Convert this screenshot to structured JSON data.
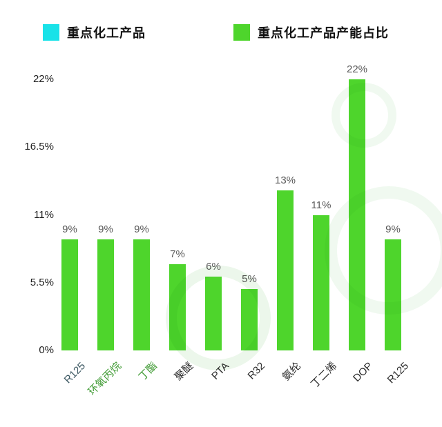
{
  "legend": {
    "items": [
      {
        "label": "重点化工产品",
        "color": "#19E2E8"
      },
      {
        "label": "重点化工产品产能占比",
        "color": "#4ED52C"
      }
    ]
  },
  "chart_data": {
    "type": "bar",
    "title": "",
    "xlabel": "",
    "ylabel": "",
    "categories": [
      "R125",
      "环氧丙烷",
      "丁酯",
      "聚醚",
      "PTA",
      "R32",
      "氨纶",
      "丁二烯",
      "DOP",
      "R125"
    ],
    "values": [
      9,
      9,
      9,
      7,
      6,
      5,
      13,
      11,
      22,
      9
    ],
    "value_labels": [
      "9%",
      "9%",
      "9%",
      "7%",
      "6%",
      "5%",
      "13%",
      "11%",
      "22%",
      "9%"
    ],
    "bar_color": "#4ED52C",
    "category_colors": [
      "#3C5862",
      "#3F9A33",
      "#3F9A33",
      "#2b2b2b",
      "#2b2b2b",
      "#2b2b2b",
      "#2b2b2b",
      "#2b2b2b",
      "#2b2b2b",
      "#2b2b2b"
    ],
    "yticks": [
      {
        "label": "0%",
        "value": 0
      },
      {
        "label": "5.5%",
        "value": 5.5
      },
      {
        "label": "11%",
        "value": 11
      },
      {
        "label": "16.5%",
        "value": 16.5
      },
      {
        "label": "22%",
        "value": 22
      }
    ],
    "ylim": [
      0,
      22
    ],
    "grid": false,
    "legend_position": "top"
  }
}
